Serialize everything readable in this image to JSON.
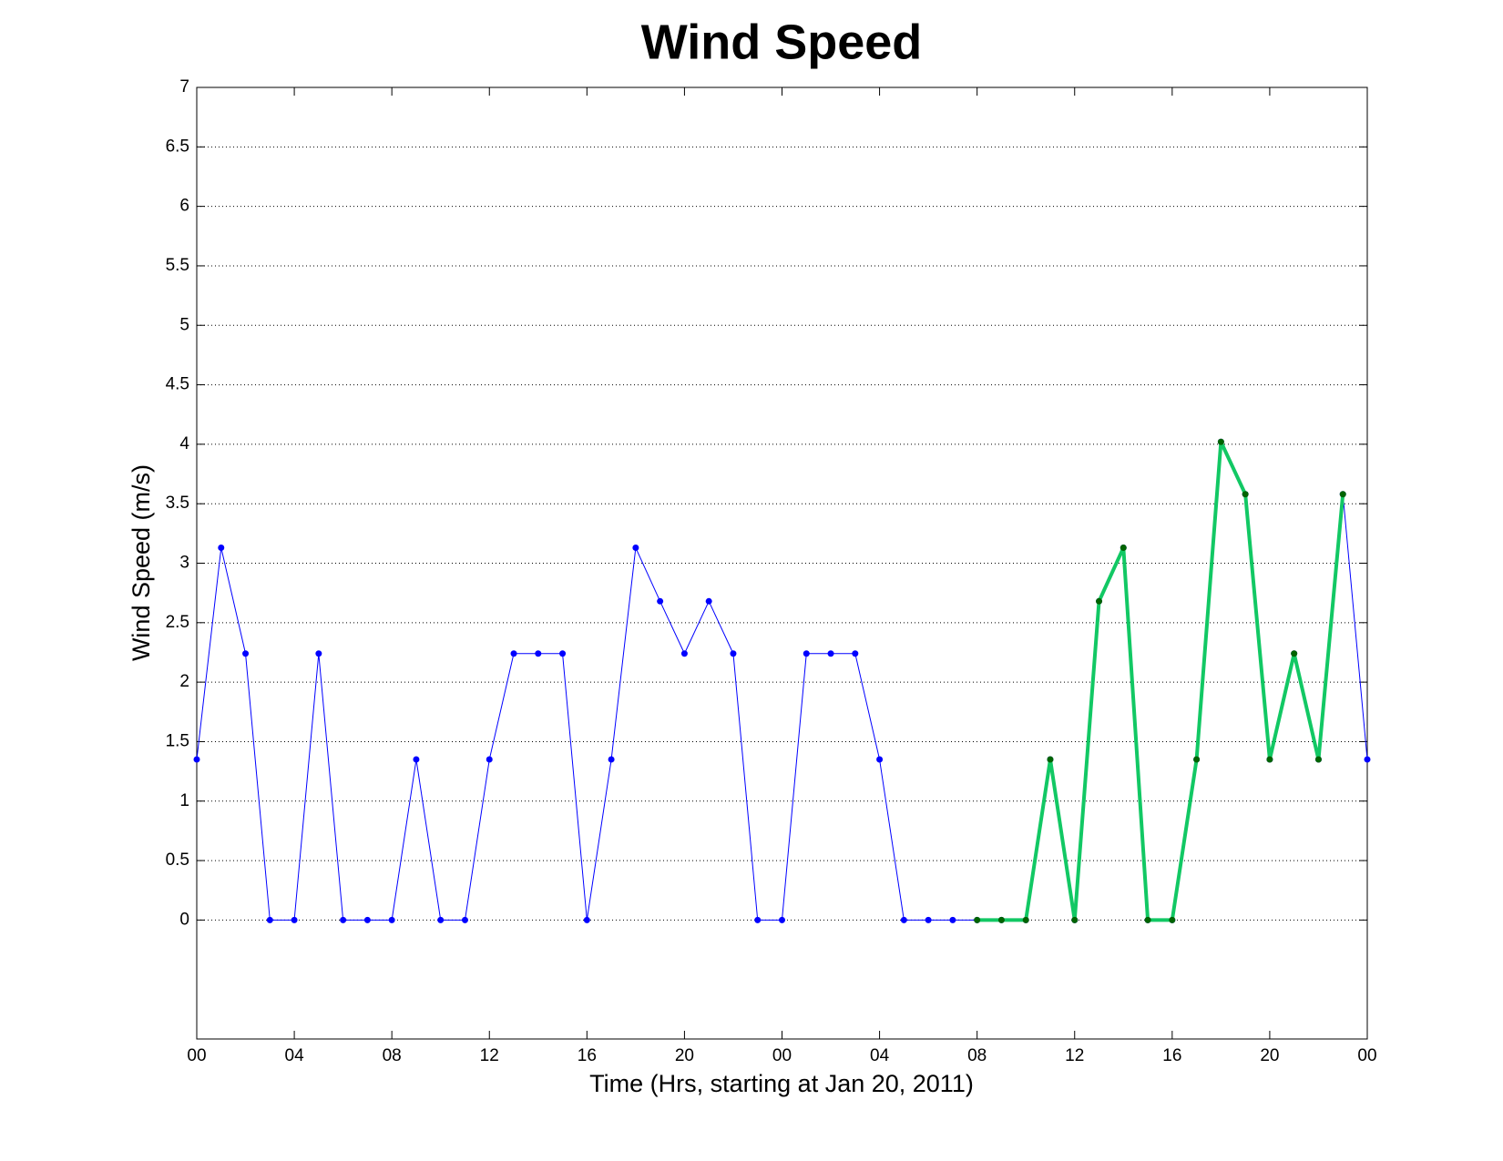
{
  "chart_data": {
    "type": "line",
    "title": "Wind Speed",
    "x_label": "Time (Hrs, starting at Jan 20, 2011)",
    "y_label": "Wind Speed (m/s)",
    "xlim": [
      0,
      48
    ],
    "xticks": [
      {
        "value": 0,
        "label": "00"
      },
      {
        "value": 4,
        "label": "04"
      },
      {
        "value": 8,
        "label": "08"
      },
      {
        "value": 12,
        "label": "12"
      },
      {
        "value": 16,
        "label": "16"
      },
      {
        "value": 20,
        "label": "20"
      },
      {
        "value": 24,
        "label": "00"
      },
      {
        "value": 28,
        "label": "04"
      },
      {
        "value": 32,
        "label": "08"
      },
      {
        "value": 36,
        "label": "12"
      },
      {
        "value": 40,
        "label": "16"
      },
      {
        "value": 44,
        "label": "20"
      },
      {
        "value": 48,
        "label": "00"
      }
    ],
    "ylim": [
      -1,
      7
    ],
    "yticks": [
      0,
      0.5,
      1,
      1.5,
      2,
      2.5,
      3,
      3.5,
      4,
      4.5,
      5,
      5.5,
      6,
      6.5,
      7
    ],
    "grid": true,
    "series": [
      {
        "color": "#0000ff",
        "marker_color": "#0000ff",
        "line_width": 1,
        "x": [
          0,
          1,
          2,
          3,
          4,
          5,
          6,
          7,
          8,
          9,
          10,
          11,
          12,
          13,
          14,
          15,
          16,
          17,
          18,
          19,
          20,
          21,
          22,
          23,
          24,
          25,
          26,
          27,
          28,
          29,
          30,
          31,
          32,
          33,
          34,
          35,
          36,
          37,
          38,
          39,
          40,
          41,
          42,
          43,
          44,
          45,
          46,
          47,
          48
        ],
        "values": [
          1.35,
          3.13,
          2.24,
          0,
          0,
          2.24,
          0,
          0,
          0,
          1.35,
          0,
          0,
          1.35,
          2.24,
          2.24,
          2.24,
          0,
          1.35,
          3.13,
          2.68,
          2.24,
          2.68,
          2.24,
          0,
          0,
          2.24,
          2.24,
          2.24,
          1.35,
          0,
          0,
          0,
          0,
          0,
          0,
          1.35,
          0,
          2.68,
          3.13,
          0,
          0,
          1.35,
          4.02,
          3.58,
          1.35,
          2.24,
          1.35,
          3.58,
          1.35
        ]
      },
      {
        "color": "#12c864",
        "marker_color": "#006400",
        "line_width": 4,
        "x": [
          32,
          33,
          34,
          35,
          36,
          37,
          38,
          39,
          40,
          41,
          42,
          43,
          44,
          45,
          46,
          47
        ],
        "values": [
          0,
          0,
          0,
          1.35,
          0,
          2.68,
          3.13,
          0,
          0,
          1.35,
          4.02,
          3.58,
          1.35,
          2.24,
          1.35,
          3.58
        ]
      }
    ]
  }
}
